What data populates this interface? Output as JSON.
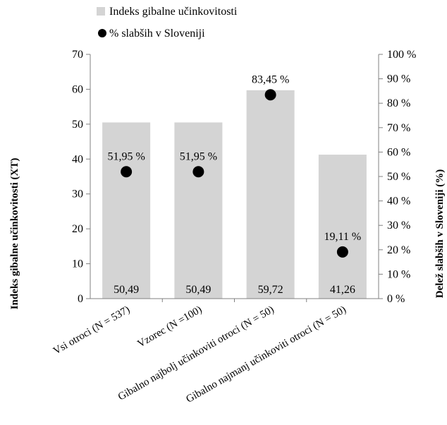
{
  "colors": {
    "bar": "#d4d4d4",
    "marker": "#000000",
    "axis": "#808080",
    "text": "#000000",
    "background": "#ffffff"
  },
  "chart_data": {
    "type": "bar",
    "categories": [
      "Vsi otroci (N = 537)",
      "Vzorec (N =100)",
      "Gibalno najbolj učinkoviti otroci (N = 50)",
      "Gibalno najmanj učinkoviti otroci (N = 50)"
    ],
    "series": [
      {
        "name": "Indeks gibalne učinkovitosti",
        "type": "bar",
        "axis": "left",
        "values": [
          50.49,
          50.49,
          59.72,
          41.26
        ],
        "labels": [
          "50,49",
          "50,49",
          "59,72",
          "41,26"
        ]
      },
      {
        "name": "% slabših v Sloveniji",
        "type": "scatter",
        "axis": "right",
        "values": [
          51.95,
          51.95,
          83.45,
          19.11
        ],
        "labels": [
          "51,95 %",
          "51,95 %",
          "83,45 %",
          "19,11 %"
        ]
      }
    ],
    "ylabel": "Indeks gibalne učinkovitosti (XT)",
    "ylim": [
      0,
      70
    ],
    "yticks": [
      "0",
      "10",
      "20",
      "30",
      "40",
      "50",
      "60",
      "70"
    ],
    "y2label": "Delež slabših v Sloveniji (%)",
    "y2lim": [
      0,
      100
    ],
    "y2ticks": [
      "0 %",
      "10 %",
      "20 %",
      "30 %",
      "40 %",
      "50 %",
      "60 %",
      "70 %",
      "80 %",
      "90 %",
      "100 %"
    ],
    "grid": false,
    "legend_position": "top"
  }
}
